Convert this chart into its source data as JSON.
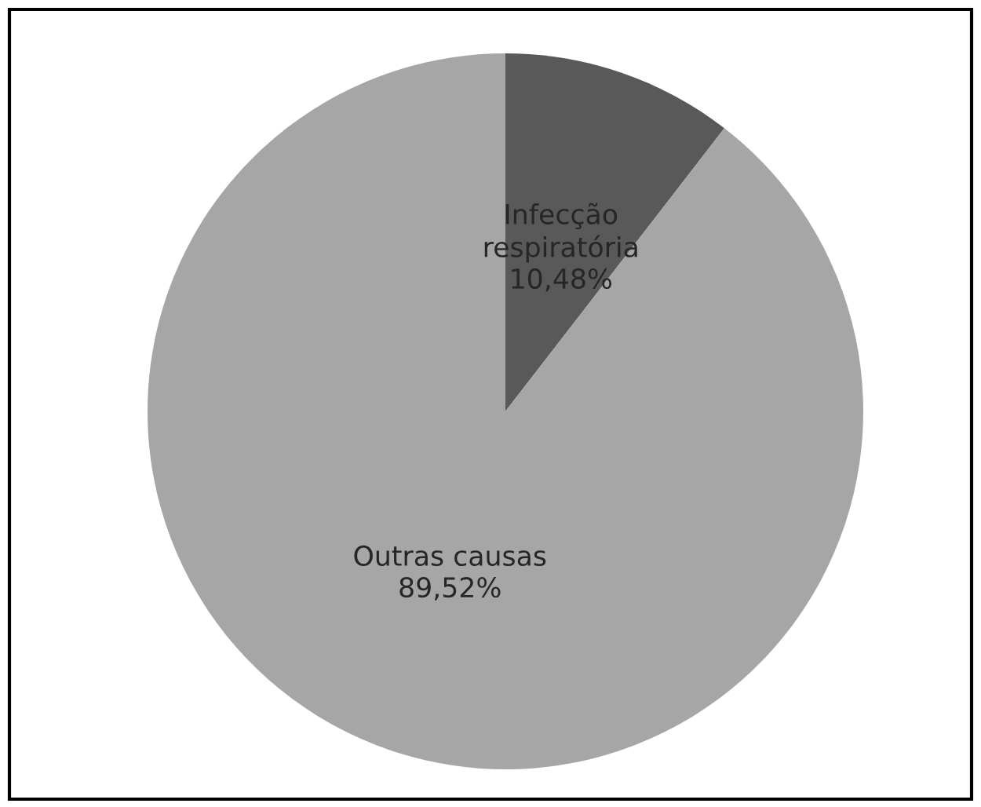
{
  "chart_data": {
    "type": "pie",
    "categories": [
      "Infecção\nrespiratória",
      "Outras causas"
    ],
    "values": [
      10.48,
      89.52
    ],
    "value_labels": [
      "10,48%",
      "89,52%"
    ],
    "colors": [
      "#595959",
      "#a6a6a6"
    ]
  }
}
